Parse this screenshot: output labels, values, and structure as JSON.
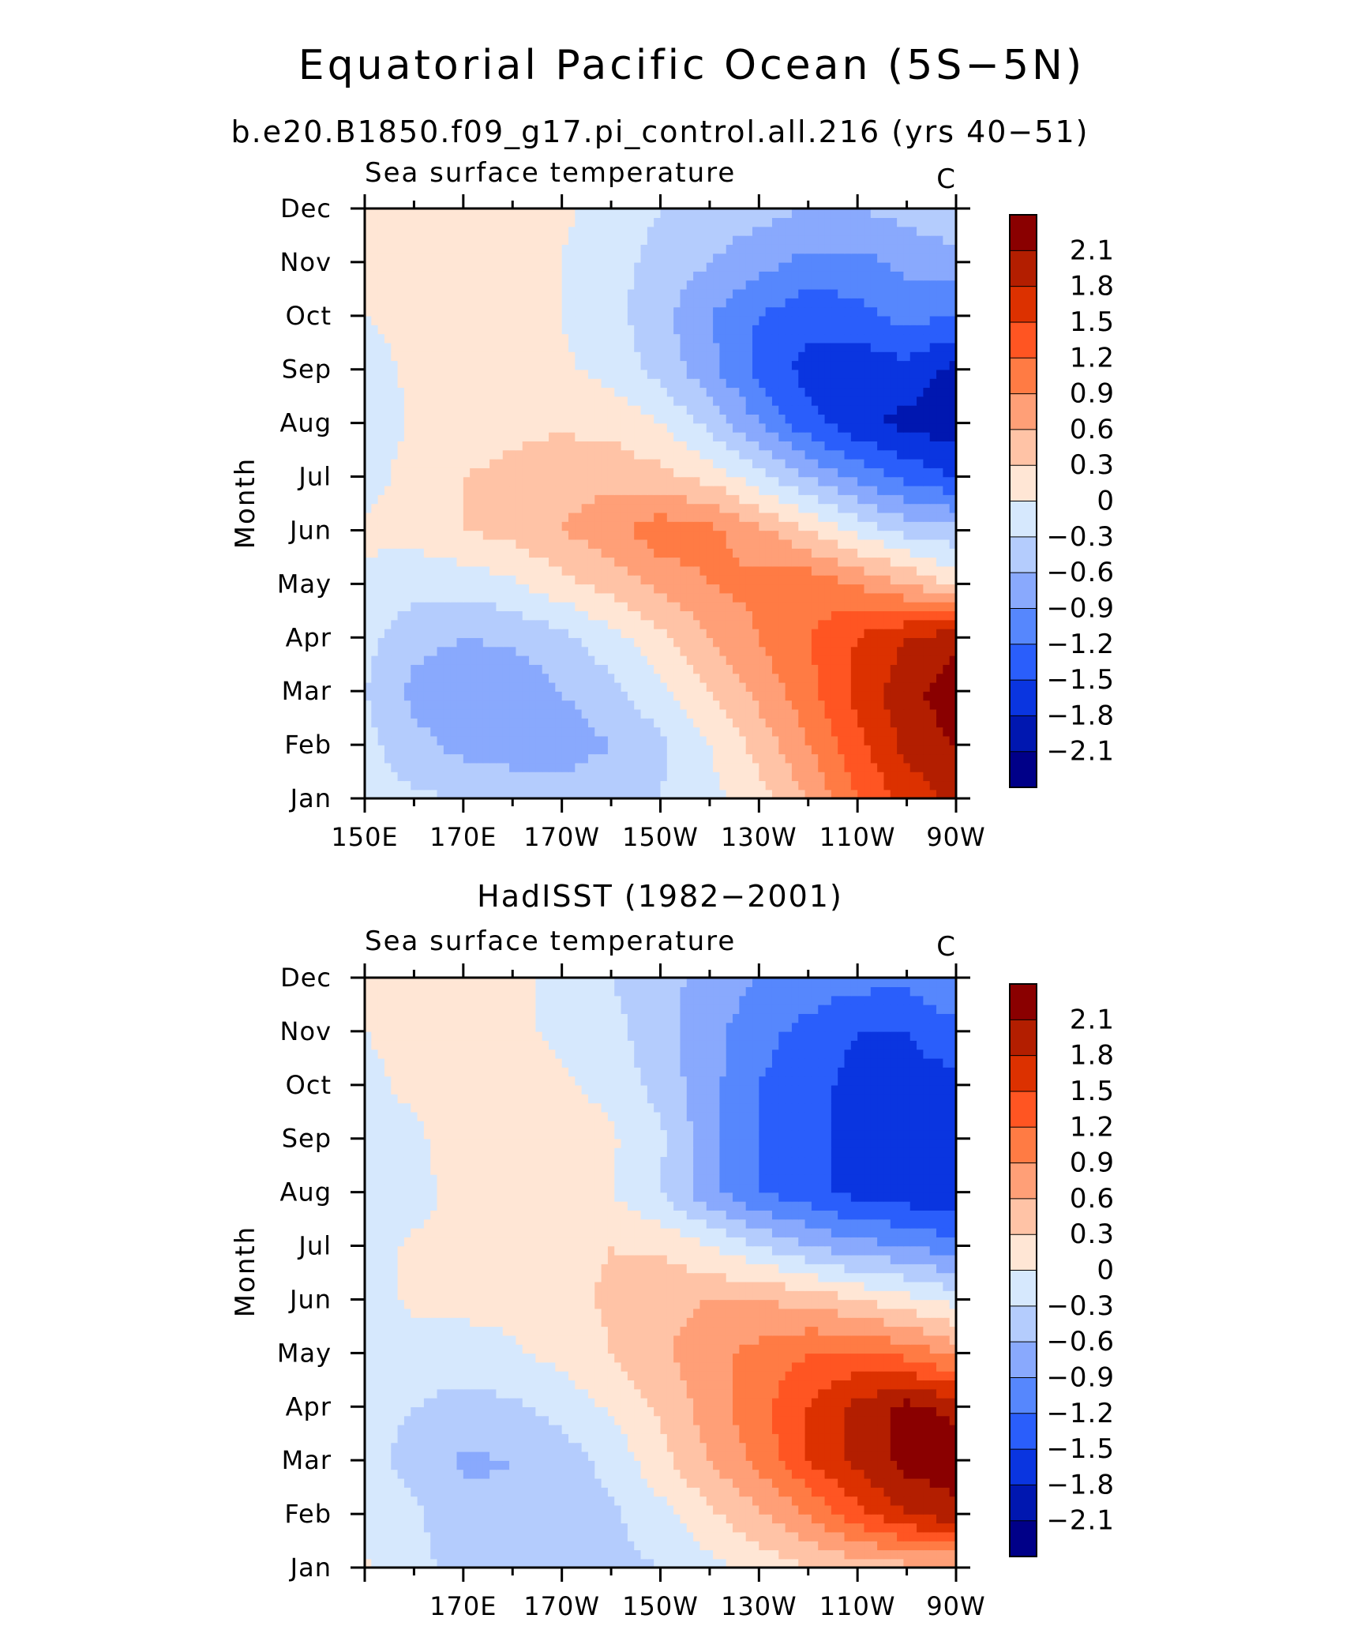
{
  "title": "Equatorial Pacific Ocean (5S−5N)",
  "colorbar": {
    "levels": [
      "2.1",
      "1.8",
      "1.5",
      "1.2",
      "0.9",
      "0.6",
      "0.3",
      "0",
      "−0.3",
      "−0.6",
      "−0.9",
      "−1.2",
      "−1.5",
      "−1.8",
      "−2.1"
    ],
    "colors": [
      "#8a0000",
      "#b31e00",
      "#dc3100",
      "#ff5522",
      "#ff7b44",
      "#ff9f77",
      "#ffc3a6",
      "#ffe6d5",
      "#d6e8fd",
      "#b4ccfd",
      "#89a9fd",
      "#5687fd",
      "#2a5efb",
      "#0a35e0",
      "#0017b0",
      "#000088"
    ]
  },
  "chart_data": [
    {
      "type": "heatmap",
      "title": "b.e20.B1850.f09_g17.pi_control.all.216 (yrs 40−51)",
      "left_label": "Sea surface temperature",
      "right_label": "C",
      "ylabel": "Month",
      "xlabel": "",
      "x_ticks": [
        "150E",
        "170E",
        "170W",
        "150W",
        "130W",
        "110W",
        "90W"
      ],
      "x_tick_values": [
        150,
        170,
        190,
        210,
        230,
        250,
        270
      ],
      "y_ticks": [
        "Jan",
        "Feb",
        "Mar",
        "Apr",
        "May",
        "Jun",
        "Jul",
        "Aug",
        "Sep",
        "Oct",
        "Nov",
        "Dec"
      ],
      "xlim": [
        150,
        270
      ],
      "ylim": [
        1,
        12
      ],
      "x": [
        150,
        160,
        170,
        180,
        190,
        200,
        210,
        220,
        230,
        240,
        250,
        260,
        270
      ],
      "values": [
        [
          -0.2,
          -0.25,
          -0.3,
          -0.4,
          -0.45,
          -0.4,
          -0.3,
          -0.1,
          0.2,
          0.6,
          1.2,
          1.6,
          1.9
        ],
        [
          -0.2,
          -0.5,
          -0.7,
          -0.75,
          -0.75,
          -0.6,
          -0.35,
          0,
          0.4,
          0.9,
          1.4,
          1.9,
          2.1
        ],
        [
          -0.3,
          -0.7,
          -0.8,
          -0.8,
          -0.6,
          -0.4,
          -0.1,
          0.3,
          0.7,
          1.1,
          1.6,
          2.0,
          2.3
        ],
        [
          -0.2,
          -0.5,
          -0.6,
          -0.55,
          -0.4,
          -0.1,
          0.2,
          0.6,
          0.9,
          1.2,
          1.5,
          1.8,
          2.0
        ],
        [
          -0.05,
          -0.2,
          -0.2,
          -0.05,
          0.2,
          0.4,
          0.7,
          0.9,
          1.0,
          1.1,
          0.9,
          0.6,
          0.2
        ],
        [
          0.05,
          0.1,
          0.3,
          0.4,
          0.6,
          0.8,
          1.1,
          1.0,
          0.7,
          0.3,
          -0.1,
          -0.4,
          -0.5
        ],
        [
          -0.1,
          0.1,
          0.3,
          0.4,
          0.5,
          0.5,
          0.4,
          0.2,
          -0.2,
          -0.6,
          -1.0,
          -1.3,
          -1.5
        ],
        [
          -0.2,
          0.05,
          0.1,
          0.2,
          0.25,
          0.2,
          0.0,
          -0.4,
          -0.9,
          -1.4,
          -1.7,
          -1.9,
          -2.0
        ],
        [
          -0.1,
          0.05,
          0.1,
          0.1,
          0.05,
          -0.1,
          -0.4,
          -0.8,
          -1.3,
          -1.6,
          -1.7,
          -1.6,
          -1.9
        ],
        [
          0.0,
          0.05,
          0.1,
          0.05,
          0.0,
          -0.2,
          -0.5,
          -0.9,
          -1.2,
          -1.4,
          -1.3,
          -1.1,
          -1.2
        ],
        [
          0.1,
          0.1,
          0.1,
          0.05,
          0.0,
          -0.2,
          -0.4,
          -0.6,
          -0.8,
          -1.0,
          -1.0,
          -0.8,
          -0.7
        ],
        [
          0.15,
          0.25,
          0.2,
          0.1,
          0.05,
          -0.1,
          -0.3,
          -0.4,
          -0.5,
          -0.6,
          -0.6,
          -0.5,
          -0.4
        ]
      ]
    },
    {
      "type": "heatmap",
      "title": "HadISST (1982−2001)",
      "left_label": "Sea surface temperature",
      "right_label": "C",
      "ylabel": "Month",
      "xlabel": "",
      "x_ticks": [
        "170E",
        "170W",
        "150W",
        "130W",
        "110W",
        "90W"
      ],
      "x_tick_values": [
        170,
        190,
        210,
        230,
        250,
        270
      ],
      "y_ticks": [
        "Jan",
        "Feb",
        "Mar",
        "Apr",
        "May",
        "Jun",
        "Jul",
        "Aug",
        "Sep",
        "Oct",
        "Nov",
        "Dec"
      ],
      "xlim": [
        150,
        270
      ],
      "ylim": [
        1,
        12
      ],
      "x": [
        150,
        160,
        170,
        180,
        190,
        200,
        210,
        220,
        230,
        240,
        250,
        260,
        270
      ],
      "values": [
        [
          0.05,
          -0.25,
          -0.35,
          -0.4,
          -0.4,
          -0.4,
          -0.3,
          -0.1,
          0.1,
          0.3,
          0.4,
          0.5,
          0.5
        ],
        [
          -0.1,
          -0.25,
          -0.5,
          -0.55,
          -0.5,
          -0.35,
          -0.1,
          0.25,
          0.55,
          0.9,
          1.4,
          1.8,
          2.0
        ],
        [
          -0.2,
          -0.4,
          -0.65,
          -0.6,
          -0.45,
          -0.2,
          0.2,
          0.6,
          1.0,
          1.5,
          1.9,
          2.2,
          2.3
        ],
        [
          -0.2,
          -0.3,
          -0.4,
          -0.35,
          -0.2,
          0.05,
          0.35,
          0.75,
          1.1,
          1.5,
          1.9,
          2.2,
          2.0
        ],
        [
          -0.1,
          -0.15,
          -0.15,
          -0.05,
          0.1,
          0.3,
          0.55,
          0.8,
          1.0,
          1.2,
          1.25,
          1.1,
          0.8
        ],
        [
          -0.1,
          0.05,
          0.1,
          0.1,
          0.2,
          0.35,
          0.5,
          0.6,
          0.6,
          0.5,
          0.3,
          0.1,
          -0.1
        ],
        [
          -0.1,
          0.05,
          0.05,
          0.1,
          0.2,
          0.3,
          0.25,
          0.0,
          -0.3,
          -0.6,
          -0.8,
          -0.9,
          -1.1
        ],
        [
          -0.25,
          -0.1,
          0.1,
          0.2,
          0.15,
          0.0,
          -0.3,
          -0.8,
          -1.2,
          -1.4,
          -1.6,
          -1.7,
          -1.8
        ],
        [
          -0.1,
          -0.05,
          0.15,
          0.3,
          0.2,
          0.05,
          -0.25,
          -0.8,
          -1.2,
          -1.4,
          -1.6,
          -1.7,
          -1.8
        ],
        [
          -0.05,
          0.05,
          0.1,
          0.1,
          0.05,
          -0.1,
          -0.4,
          -0.8,
          -1.2,
          -1.4,
          -1.6,
          -1.6,
          -1.6
        ],
        [
          0.0,
          0.05,
          0.05,
          0.05,
          -0.05,
          -0.2,
          -0.5,
          -0.8,
          -1.1,
          -1.3,
          -1.5,
          -1.5,
          -1.3
        ],
        [
          0.05,
          0.1,
          0.1,
          0.05,
          -0.05,
          -0.3,
          -0.5,
          -0.7,
          -0.9,
          -1.0,
          -1.1,
          -1.1,
          -0.9
        ]
      ]
    }
  ]
}
